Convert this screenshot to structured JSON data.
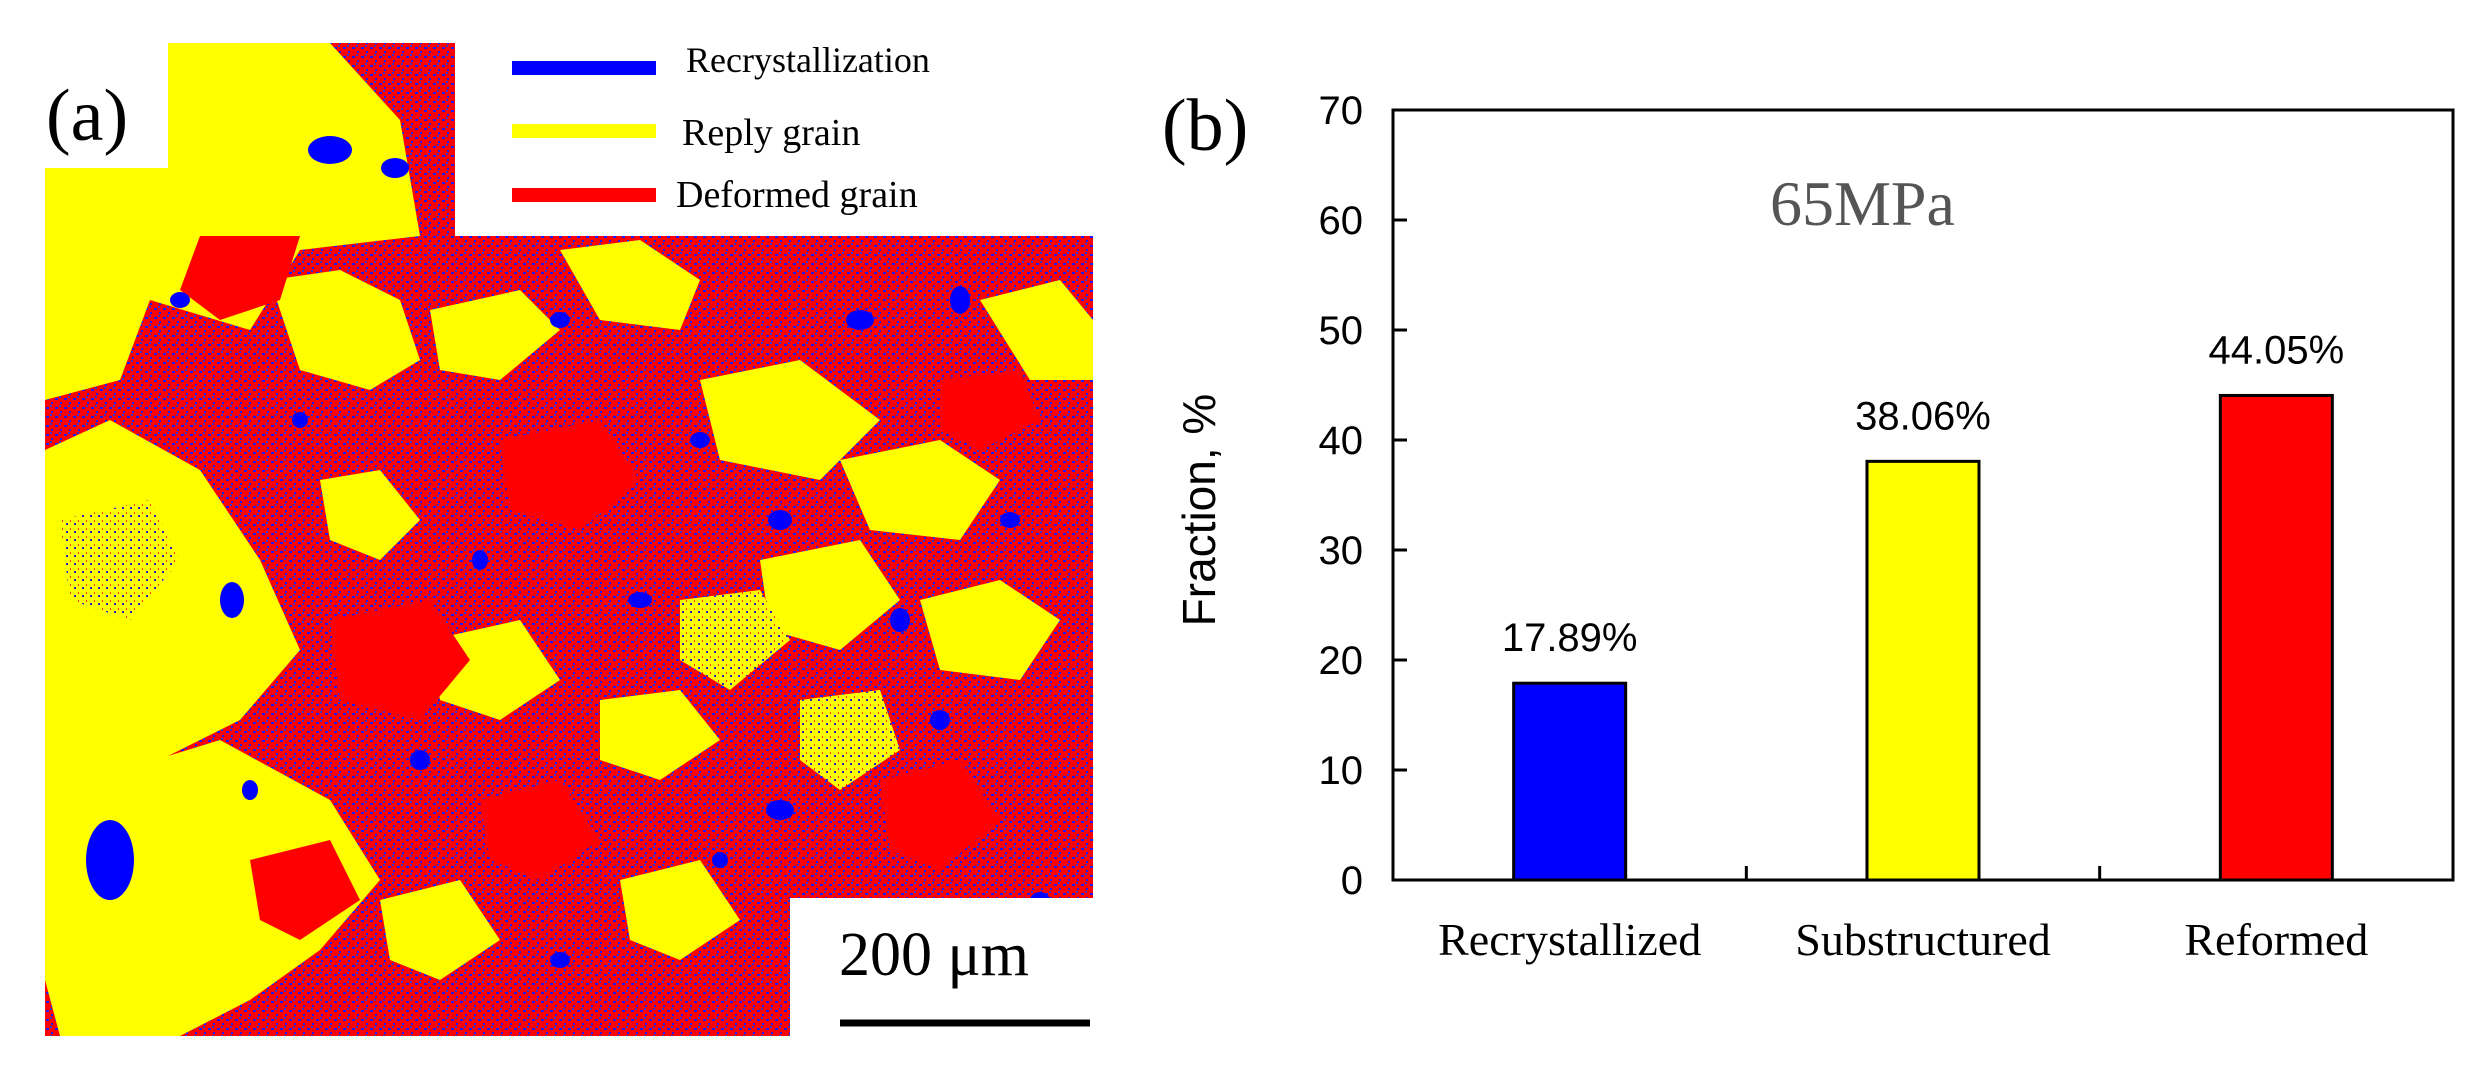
{
  "panel_a": {
    "label": "(a)",
    "legend": [
      {
        "name": "Recrystallization",
        "color": "#0000ff"
      },
      {
        "name": "Reply grain",
        "color": "#ffff00"
      },
      {
        "name": "Deformed grain",
        "color": "#ff0000"
      }
    ],
    "scale_bar_label": "200 μm",
    "map_colors": {
      "recrystallized": "#0000ff",
      "reply": "#ffff00",
      "deformed": "#ff0000"
    }
  },
  "panel_b": {
    "label": "(b)"
  },
  "chart_data": {
    "type": "bar",
    "title": "65MPa",
    "xlabel": "",
    "ylabel": "Fraction, %",
    "categories": [
      "Recrystallized",
      "Substructured",
      "Reformed"
    ],
    "values": [
      17.89,
      38.06,
      44.05
    ],
    "data_labels": [
      "17.89%",
      "38.06%",
      "44.05%"
    ],
    "colors": [
      "#0000ff",
      "#ffff00",
      "#ff0000"
    ],
    "ylim": [
      0,
      70
    ],
    "yticks": [
      0,
      10,
      20,
      30,
      40,
      50,
      60,
      70
    ],
    "grid": false
  }
}
